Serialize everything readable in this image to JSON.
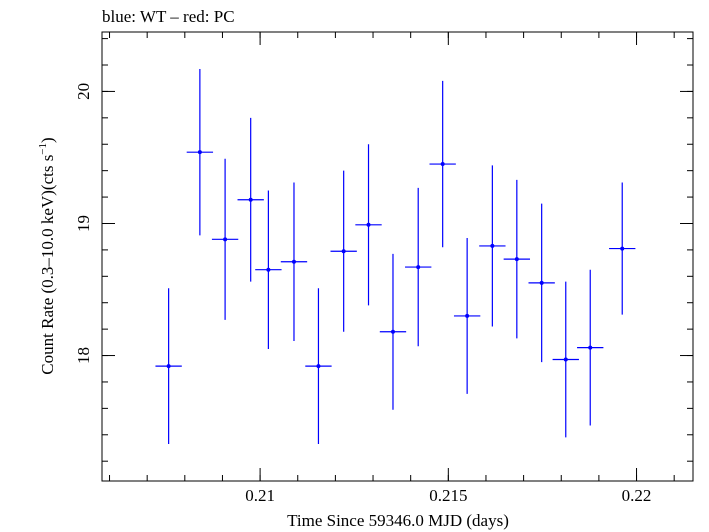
{
  "chart_data": {
    "type": "scatter",
    "title": "blue: WT – red: PC",
    "xlabel": "Time Since 59346.0 MJD (days)",
    "ylabel": "Count Rate (0.3–10.0 keV)(cts s",
    "ylabel_sup": "−1",
    "ylabel_end": ")",
    "xlim": [
      0.2058,
      0.2215
    ],
    "ylim": [
      17.05,
      20.45
    ],
    "xticks": [
      {
        "value": 0.21,
        "label": "0.21"
      },
      {
        "value": 0.215,
        "label": "0.215"
      },
      {
        "value": 0.22,
        "label": "0.22"
      }
    ],
    "yticks": [
      {
        "value": 18,
        "label": "18"
      },
      {
        "value": 19,
        "label": "19"
      },
      {
        "value": 20,
        "label": "20"
      }
    ],
    "xminor_step": 0.001,
    "yminor_step": 0.2,
    "grid": false,
    "legend": "none",
    "series": [
      {
        "color": "#0000ff",
        "points": [
          {
            "x": 0.20757,
            "xerr": 0.00035,
            "y": 17.92,
            "yerr": 0.59
          },
          {
            "x": 0.2084,
            "xerr": 0.00035,
            "y": 19.54,
            "yerr": 0.63
          },
          {
            "x": 0.20907,
            "xerr": 0.00035,
            "y": 18.88,
            "yerr": 0.61
          },
          {
            "x": 0.20975,
            "xerr": 0.00035,
            "y": 19.18,
            "yerr": 0.62
          },
          {
            "x": 0.21022,
            "xerr": 0.00035,
            "y": 18.65,
            "yerr": 0.6
          },
          {
            "x": 0.2109,
            "xerr": 0.00035,
            "y": 18.71,
            "yerr": 0.6
          },
          {
            "x": 0.21155,
            "xerr": 0.00035,
            "y": 17.92,
            "yerr": 0.59
          },
          {
            "x": 0.21222,
            "xerr": 0.00035,
            "y": 18.79,
            "yerr": 0.61
          },
          {
            "x": 0.21288,
            "xerr": 0.00035,
            "y": 18.99,
            "yerr": 0.61
          },
          {
            "x": 0.21353,
            "xerr": 0.00035,
            "y": 18.18,
            "yerr": 0.59
          },
          {
            "x": 0.2142,
            "xerr": 0.00035,
            "y": 18.67,
            "yerr": 0.6
          },
          {
            "x": 0.21485,
            "xerr": 0.00035,
            "y": 19.45,
            "yerr": 0.63
          },
          {
            "x": 0.2155,
            "xerr": 0.00035,
            "y": 18.3,
            "yerr": 0.59
          },
          {
            "x": 0.21617,
            "xerr": 0.00035,
            "y": 18.83,
            "yerr": 0.61
          },
          {
            "x": 0.21682,
            "xerr": 0.00035,
            "y": 18.73,
            "yerr": 0.6
          },
          {
            "x": 0.21748,
            "xerr": 0.00035,
            "y": 18.55,
            "yerr": 0.6
          },
          {
            "x": 0.21812,
            "xerr": 0.00035,
            "y": 17.97,
            "yerr": 0.59
          },
          {
            "x": 0.21877,
            "xerr": 0.00035,
            "y": 18.06,
            "yerr": 0.59
          },
          {
            "x": 0.21962,
            "xerr": 0.00035,
            "y": 18.81,
            "yerr": 0.5
          }
        ]
      }
    ]
  }
}
